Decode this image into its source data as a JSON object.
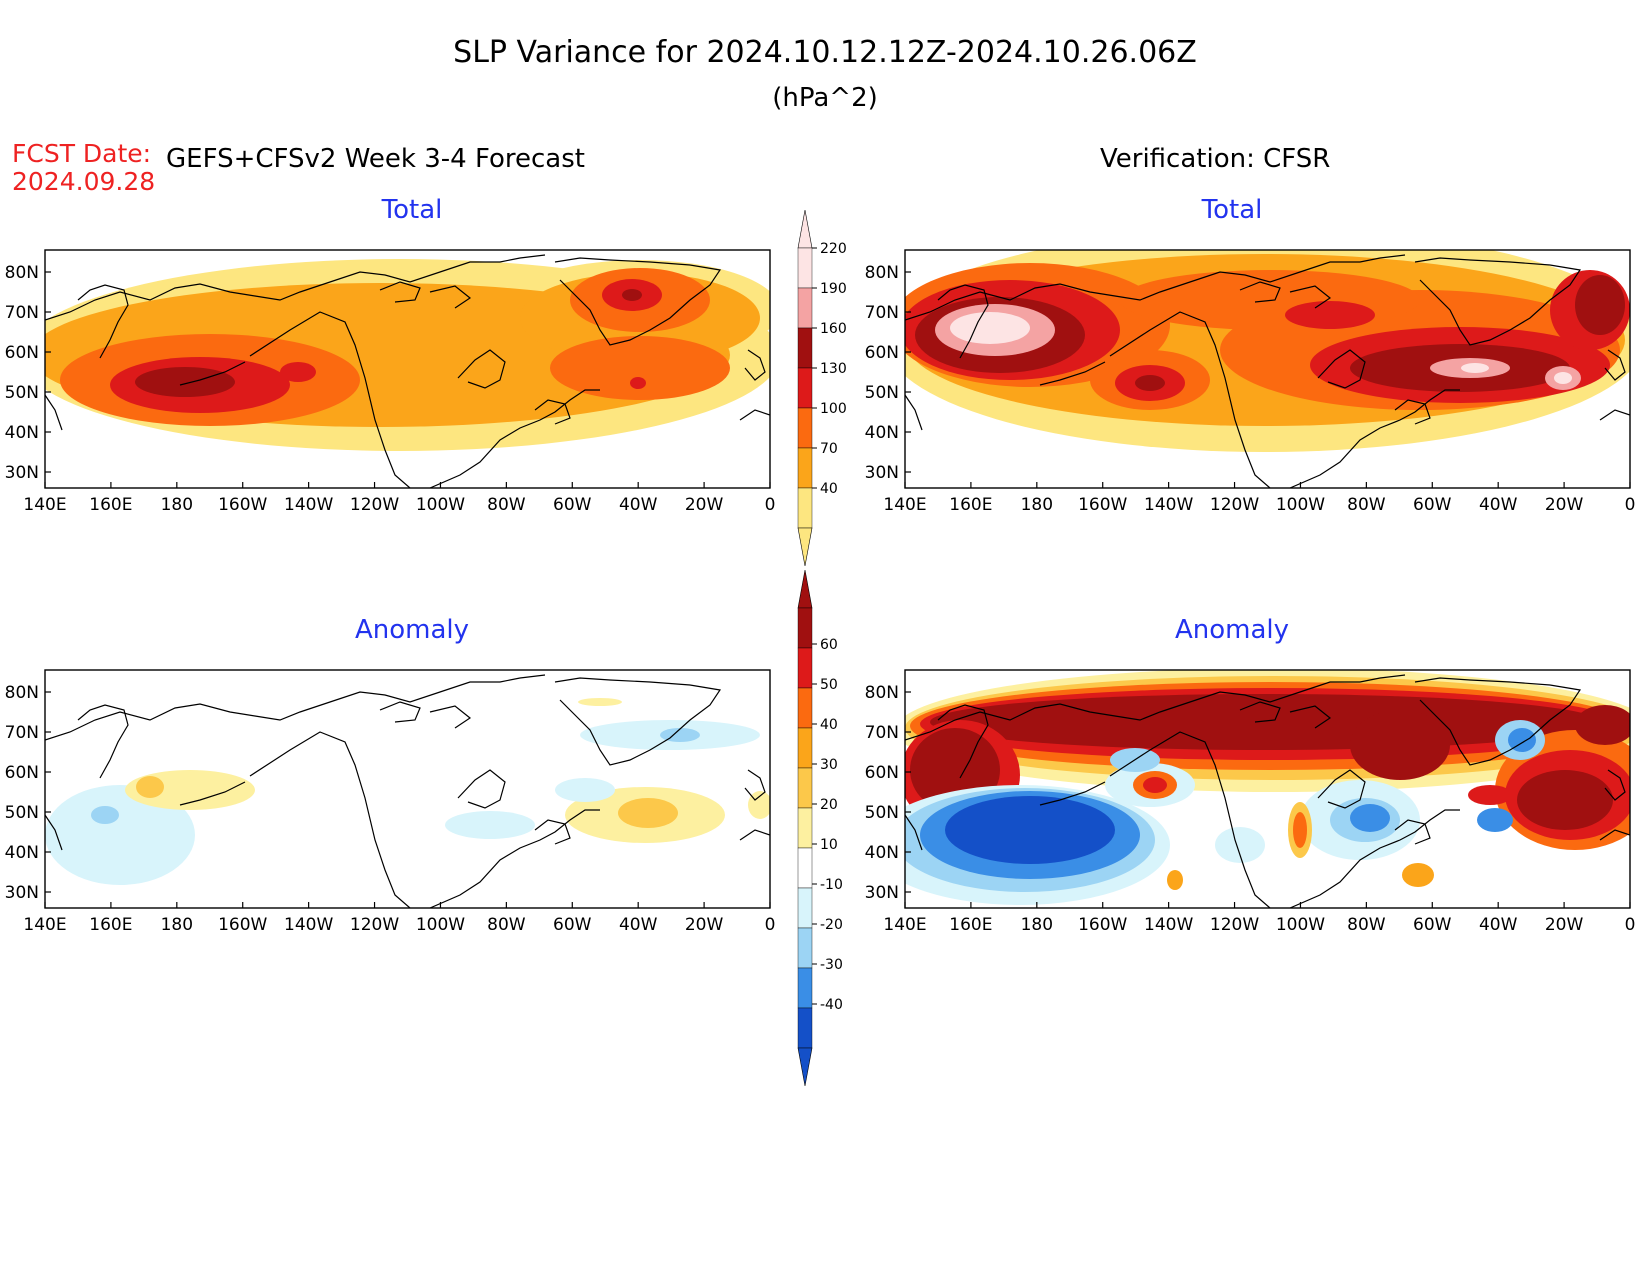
{
  "title": "SLP Variance for 2024.10.12.12Z-2024.10.26.06Z",
  "units": "(hPa^2)",
  "fcst_date_label": "FCST Date:",
  "fcst_date_value": "2024.09.28",
  "left_header": "GEFS+CFSv2 Week 3-4 Forecast",
  "right_header": "Verification: CFSR",
  "panel_titles": {
    "total": "Total",
    "anomaly": "Anomaly"
  },
  "colors": {
    "title": "#000000",
    "fcst": "#ee2222",
    "panel_title": "#2233ee"
  },
  "lon_labels": [
    "140E",
    "160E",
    "180",
    "160W",
    "140W",
    "120W",
    "100W",
    "80W",
    "60W",
    "40W",
    "20W",
    "0"
  ],
  "lat_labels": [
    "80N",
    "70N",
    "60N",
    "50N",
    "40N",
    "30N"
  ],
  "total_scale": {
    "labels": [
      "220",
      "190",
      "160",
      "130",
      "100",
      "70",
      "40"
    ],
    "colors": [
      "#fde4e4",
      "#f4a3a3",
      "#a01010",
      "#dd1a1a",
      "#fb6a10",
      "#fba51a",
      "#fde680"
    ]
  },
  "anomaly_scale": {
    "labels": [
      "60",
      "50",
      "40",
      "30",
      "20",
      "10",
      "-10",
      "-20",
      "-30",
      "-40"
    ],
    "colors": [
      "#a01010",
      "#dd1a1a",
      "#fb6a10",
      "#fba51a",
      "#fcc84a",
      "#fdf0a0",
      "#ffffff",
      "#d8f4fb",
      "#9cd4f4",
      "#3a8ee6",
      "#1450c8"
    ]
  }
}
